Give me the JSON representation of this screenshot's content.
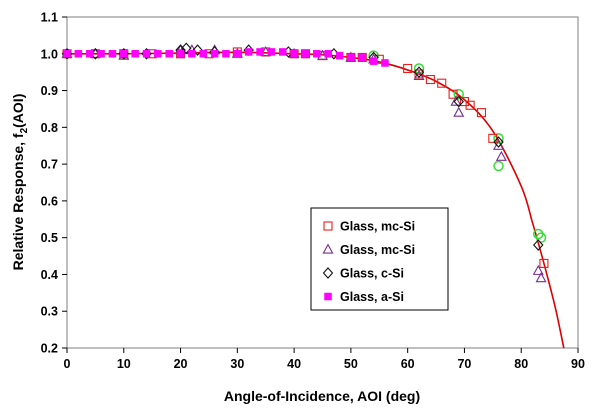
{
  "chart_data": {
    "type": "scatter",
    "title": "",
    "xlabel": "Angle-of-Incidence, AOI (deg)",
    "ylabel_parts": {
      "main": "Relative Response, f",
      "sub": "2",
      "tail": "(AOI)"
    },
    "xlim": [
      0,
      90
    ],
    "ylim": [
      0.2,
      1.1
    ],
    "x_ticks": [
      "0",
      "10",
      "20",
      "30",
      "40",
      "50",
      "60",
      "70",
      "80",
      "90"
    ],
    "y_ticks": [
      "0.2",
      "0.3",
      "0.4",
      "0.5",
      "0.6",
      "0.7",
      "0.8",
      "0.9",
      "1.0",
      "1.1"
    ],
    "grid": false,
    "legend_position": "center-right",
    "series": [
      {
        "name": "Glass, mc-Si",
        "marker": "square-open",
        "color": "#e8201b",
        "x": [
          0,
          5,
          10,
          15,
          20,
          25,
          30,
          35,
          40,
          42,
          45,
          50,
          52,
          55,
          60,
          62,
          64,
          66,
          68,
          70,
          71,
          73,
          75,
          84
        ],
        "y": [
          1.0,
          1.0,
          1.0,
          1.0,
          1.0,
          1.0,
          1.005,
          1.005,
          1.0,
          1.0,
          0.995,
          0.99,
          0.99,
          0.985,
          0.96,
          0.945,
          0.93,
          0.92,
          0.89,
          0.87,
          0.86,
          0.84,
          0.77,
          0.43
        ]
      },
      {
        "name": "Glass, mc-Si",
        "marker": "triangle-open",
        "color": "#7a2f8f",
        "x": [
          0,
          5,
          10,
          20,
          22,
          26,
          30,
          35,
          40,
          45,
          50,
          54,
          62,
          68.5,
          69,
          76,
          76.5,
          83,
          83.5
        ],
        "y": [
          1.0,
          1.0,
          0.995,
          1.01,
          1.01,
          1.01,
          1.0,
          1.005,
          1.0,
          0.995,
          0.99,
          0.985,
          0.94,
          0.87,
          0.84,
          0.75,
          0.72,
          0.41,
          0.39
        ]
      },
      {
        "name": "Glass, c-Si",
        "marker": "diamond-open",
        "color": "#111111",
        "x": [
          0,
          5,
          10,
          14,
          20,
          21,
          23,
          26,
          32,
          39,
          47,
          54,
          62,
          69,
          76,
          83
        ],
        "y": [
          1.0,
          1.0,
          1.0,
          1.0,
          1.01,
          1.015,
          1.01,
          1.005,
          1.01,
          1.005,
          1.0,
          0.99,
          0.95,
          0.87,
          0.76,
          0.48
        ]
      },
      {
        "name": "Glass, a-Si",
        "marker": "square-filled",
        "color": "#ff00ff",
        "x": [
          0,
          2,
          4,
          6,
          8,
          10,
          12,
          14,
          16,
          18,
          20,
          22,
          24,
          26,
          28,
          30,
          32,
          34,
          36,
          38,
          40,
          42,
          44,
          46,
          48,
          50,
          52,
          54,
          56
        ],
        "y": [
          1.0,
          1.0,
          1.0,
          1.0,
          1.0,
          1.0,
          1.0,
          1.0,
          1.0,
          1.0,
          1.0,
          1.0,
          1.0,
          1.0,
          1.0,
          1.0,
          1.005,
          1.005,
          1.005,
          1.005,
          1.0,
          1.0,
          1.0,
          1.0,
          0.995,
          0.99,
          0.99,
          0.98,
          0.975
        ]
      },
      {
        "name": "",
        "marker": "circle-open",
        "color": "#33dd33",
        "x": [
          54,
          62,
          69,
          76,
          76,
          83,
          83.5
        ],
        "y": [
          0.995,
          0.96,
          0.89,
          0.77,
          0.695,
          0.51,
          0.5
        ]
      }
    ],
    "fit_curve": {
      "color": "#dd0000",
      "x": [
        0,
        10,
        20,
        30,
        40,
        45,
        50,
        55,
        60,
        65,
        70,
        75,
        80,
        82,
        84,
        86,
        87.5
      ],
      "y": [
        1.0,
        1.0,
        1.002,
        1.004,
        1.0,
        0.997,
        0.99,
        0.978,
        0.956,
        0.925,
        0.875,
        0.79,
        0.64,
        0.54,
        0.43,
        0.31,
        0.2
      ]
    }
  }
}
